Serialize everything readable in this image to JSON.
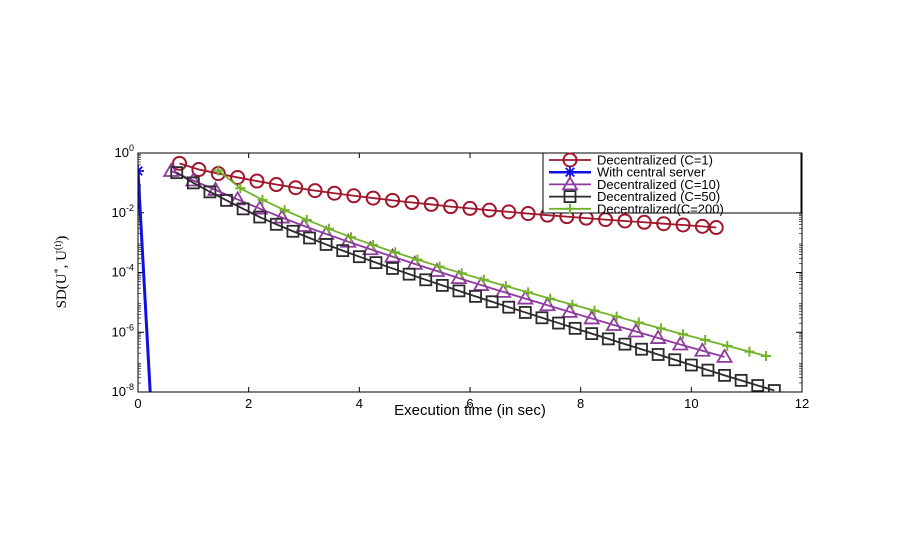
{
  "chart_data": {
    "type": "line",
    "xlabel": "Execution time (in sec)",
    "ylabel": "SD(U*, U(t))",
    "xlim": [
      0,
      12
    ],
    "ylim": [
      1e-08,
      1
    ],
    "yscale": "log",
    "x_ticks": [
      "0",
      "2",
      "4",
      "6",
      "8",
      "10",
      "12"
    ],
    "y_ticks": [
      {
        "base": "10",
        "exp": "0"
      },
      {
        "base": "10",
        "exp": "-2"
      },
      {
        "base": "10",
        "exp": "-4"
      },
      {
        "base": "10",
        "exp": "-6"
      },
      {
        "base": "10",
        "exp": "-8"
      }
    ],
    "legend_position": "top-right",
    "series": [
      {
        "name": "Decentralized (C=1)",
        "color": "#a0162c",
        "marker": "circle",
        "x": [
          0.75,
          1.1,
          1.45,
          1.8,
          2.15,
          2.5,
          2.85,
          3.2,
          3.55,
          3.9,
          4.25,
          4.6,
          4.95,
          5.3,
          5.65,
          6.0,
          6.35,
          6.7,
          7.05,
          7.4,
          7.75,
          8.1,
          8.45,
          8.8,
          9.15,
          9.5,
          9.85,
          10.2,
          10.45
        ],
        "y": [
          0.45,
          0.28,
          0.205,
          0.152,
          0.115,
          0.088,
          0.069,
          0.055,
          0.045,
          0.037,
          0.031,
          0.026,
          0.022,
          0.019,
          0.016,
          0.014,
          0.0122,
          0.0107,
          0.0094,
          0.0083,
          0.0074,
          0.0066,
          0.0059,
          0.0053,
          0.0048,
          0.0043,
          0.0039,
          0.0035,
          0.0032
        ]
      },
      {
        "name": "With central server",
        "color": "#1010e0",
        "marker": "star",
        "x": [
          0.0,
          0.22
        ],
        "y": [
          0.25,
          1e-08
        ]
      },
      {
        "name": "Decentralized (C=10)",
        "color": "#8e3a9e",
        "marker": "triangle",
        "x": [
          0.6,
          1.0,
          1.4,
          1.8,
          2.2,
          2.6,
          3.0,
          3.4,
          3.8,
          4.2,
          4.6,
          5.0,
          5.4,
          5.8,
          6.2,
          6.6,
          7.0,
          7.4,
          7.8,
          8.2,
          8.6,
          9.0,
          9.4,
          9.8,
          10.2,
          10.6
        ],
        "y": [
          0.25,
          0.12,
          0.058,
          0.028,
          0.0138,
          0.0069,
          0.0036,
          0.00195,
          0.00107,
          0.0006,
          0.00034,
          0.000195,
          0.000112,
          6.5e-05,
          3.8e-05,
          2.25e-05,
          1.34e-05,
          8e-06,
          4.8e-06,
          2.9e-06,
          1.75e-06,
          1.06e-06,
          6.4e-07,
          3.9e-07,
          2.4e-07,
          1.5e-07
        ]
      },
      {
        "name": "Decentralized (C=50)",
        "color": "#2b2b2b",
        "marker": "square",
        "x": [
          0.7,
          1.0,
          1.3,
          1.6,
          1.9,
          2.2,
          2.5,
          2.8,
          3.1,
          3.4,
          3.7,
          4.0,
          4.3,
          4.6,
          4.9,
          5.2,
          5.5,
          5.8,
          6.1,
          6.4,
          6.7,
          7.0,
          7.3,
          7.6,
          7.9,
          8.2,
          8.5,
          8.8,
          9.1,
          9.4,
          9.7,
          10.0,
          10.3,
          10.6,
          10.9,
          11.2,
          11.5
        ],
        "y": [
          0.22,
          0.1,
          0.05,
          0.026,
          0.0135,
          0.0072,
          0.0041,
          0.0024,
          0.00143,
          0.00087,
          0.00054,
          0.000338,
          0.000214,
          0.000137,
          8.8e-05,
          5.7e-05,
          3.7e-05,
          2.42e-05,
          1.59e-05,
          1.05e-05,
          6.9e-06,
          4.6e-06,
          3.05e-06,
          2.03e-06,
          1.35e-06,
          9e-07,
          6e-07,
          4e-07,
          2.7e-07,
          1.8e-07,
          1.2e-07,
          8e-08,
          5.4e-08,
          3.6e-08,
          2.45e-08,
          1.65e-08,
          1.12e-08
        ]
      },
      {
        "name": "Decentralized(C=200)",
        "color": "#73b32a",
        "marker": "plus",
        "x": [
          1.45,
          1.85,
          2.25,
          2.65,
          3.05,
          3.45,
          3.85,
          4.25,
          4.65,
          5.05,
          5.45,
          5.85,
          6.25,
          6.65,
          7.05,
          7.45,
          7.85,
          8.25,
          8.65,
          9.05,
          9.45,
          9.85,
          10.25,
          10.65,
          11.05,
          11.35
        ],
        "y": [
          0.26,
          0.066,
          0.027,
          0.0122,
          0.0058,
          0.0029,
          0.00152,
          0.00083,
          0.00047,
          0.00027,
          0.000158,
          9.4e-05,
          5.7e-05,
          3.5e-05,
          2.16e-05,
          1.34e-05,
          8.4e-06,
          5.3e-06,
          3.35e-06,
          2.12e-06,
          1.35e-06,
          8.6e-07,
          5.5e-07,
          3.5e-07,
          2.25e-07,
          1.6e-07
        ]
      }
    ]
  }
}
